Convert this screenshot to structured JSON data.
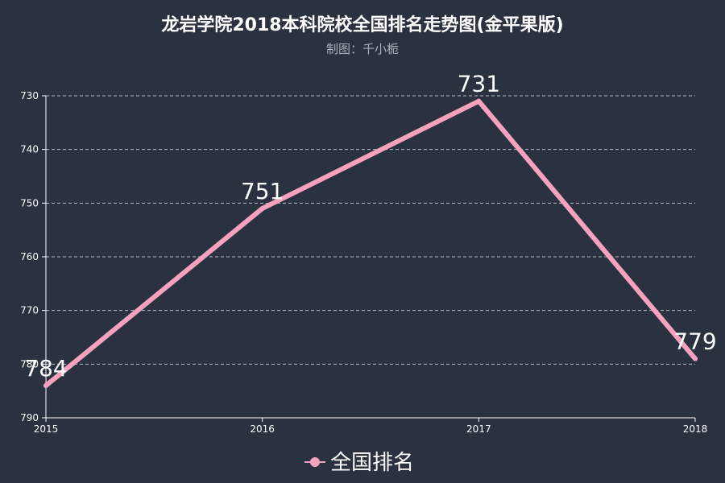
{
  "chart_data": {
    "type": "line",
    "title": "龙岩学院2018本科院校全国排名走势图(金平果版)",
    "subtitle": "制图：千小栀",
    "categories": [
      "2015",
      "2016",
      "2017",
      "2018"
    ],
    "series": [
      {
        "name": "全国排名",
        "values": [
          784,
          751,
          731,
          779
        ],
        "color": "#f7a1c0"
      }
    ],
    "y_ticks": [
      "730",
      "740",
      "750",
      "760",
      "770",
      "780",
      "790"
    ],
    "ylim": [
      730,
      790
    ],
    "y_inverted": true,
    "grid": true,
    "legend_position": "bottom-center",
    "background": "#29323e",
    "axis_color": "#ffffff",
    "grid_color": "#b8bec6"
  }
}
